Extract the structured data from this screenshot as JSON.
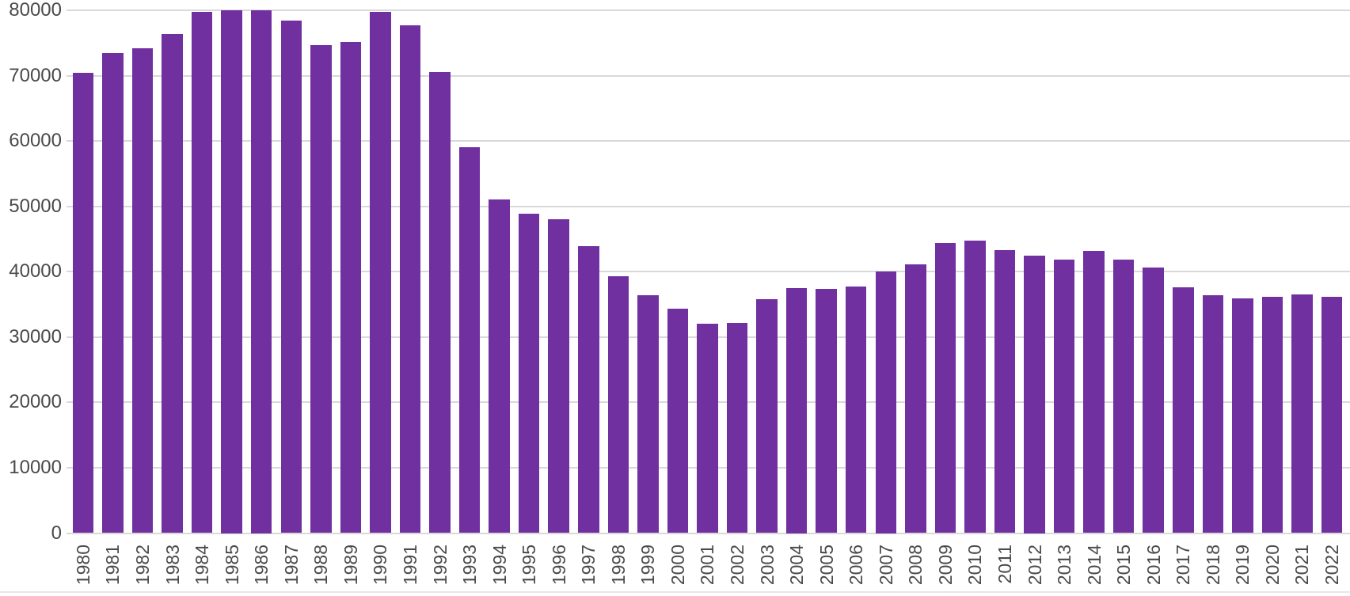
{
  "chart_data": {
    "type": "bar",
    "title": "",
    "xlabel": "",
    "ylabel": "",
    "categories": [
      "1980",
      "1981",
      "1982",
      "1983",
      "1984",
      "1985",
      "1986",
      "1987",
      "1988",
      "1989",
      "1990",
      "1991",
      "1992",
      "1993",
      "1994",
      "1995",
      "1996",
      "1997",
      "1998",
      "1999",
      "2000",
      "2001",
      "2002",
      "2003",
      "2004",
      "2005",
      "2006",
      "2007",
      "2008",
      "2009",
      "2010",
      "2011",
      "2012",
      "2013",
      "2014",
      "2015",
      "2016",
      "2017",
      "2018",
      "2019",
      "2020",
      "2021",
      "2022"
    ],
    "values": [
      70400,
      73500,
      74200,
      76400,
      79800,
      80000,
      80000,
      78400,
      74700,
      75200,
      79800,
      77700,
      70500,
      59000,
      51000,
      48900,
      48000,
      43900,
      39300,
      36400,
      34300,
      32000,
      32200,
      35800,
      37500,
      37400,
      37700,
      40000,
      41100,
      44400,
      44800,
      43300,
      42500,
      41800,
      43200,
      41800,
      40600,
      37600,
      36400,
      35900,
      36200,
      36500,
      36200
    ],
    "yticks": [
      "0",
      "10000",
      "20000",
      "30000",
      "40000",
      "50000",
      "60000",
      "70000",
      "80000"
    ],
    "ylim": [
      0,
      80000
    ],
    "ytick_step": 10000,
    "grid": true,
    "legend_position": "none",
    "bar_color": "#7030a0",
    "gridline_color": "#d9d9d9",
    "tick_label_color": "#4a4a4a",
    "background_color": "#ffffff"
  }
}
